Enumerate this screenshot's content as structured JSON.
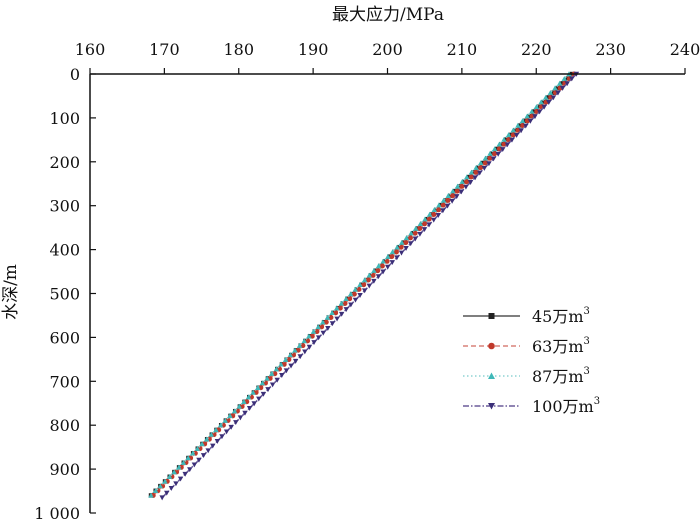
{
  "chart_data": {
    "type": "line",
    "title": "",
    "xlabel": "最大应力/MPa",
    "ylabel": "水深/m",
    "x_axis_position": "top",
    "y_axis_inverted": true,
    "xlim": [
      160,
      240
    ],
    "ylim": [
      0,
      1000
    ],
    "x_ticks": [
      "160",
      "170",
      "180",
      "190",
      "200",
      "210",
      "220",
      "230",
      "240"
    ],
    "y_ticks": [
      "0",
      "100",
      "200",
      "300",
      "400",
      "500",
      "600",
      "700",
      "800",
      "900",
      "1 000"
    ],
    "grid": false,
    "legend_position": "lower-right",
    "series": [
      {
        "name": "45万m",
        "name_sup": "3",
        "color": "#555555",
        "dash": "",
        "marker": "square",
        "marker_color": "#222222",
        "x": [
          168.2,
          224.8
        ],
        "y": [
          960,
          0
        ]
      },
      {
        "name": "63万m",
        "name_sup": "3",
        "color": "#d9827a",
        "dash": "5,3",
        "marker": "circle",
        "marker_color": "#c0392b",
        "x": [
          168.5,
          225.1
        ],
        "y": [
          960,
          0
        ]
      },
      {
        "name": "87万m",
        "name_sup": "3",
        "color": "#8fd4d4",
        "dash": "1.5,2.5",
        "marker": "triangle-up",
        "marker_color": "#3fb8b8",
        "x": [
          168.2,
          224.4
        ],
        "y": [
          960,
          0
        ]
      },
      {
        "name": "100万m",
        "name_sup": "3",
        "color": "#6b5b9a",
        "dash": "6,2,1.5,2",
        "marker": "triangle-down",
        "marker_color": "#3b2f78",
        "x": [
          169.7,
          225.4
        ],
        "y": [
          965,
          0
        ]
      }
    ]
  }
}
